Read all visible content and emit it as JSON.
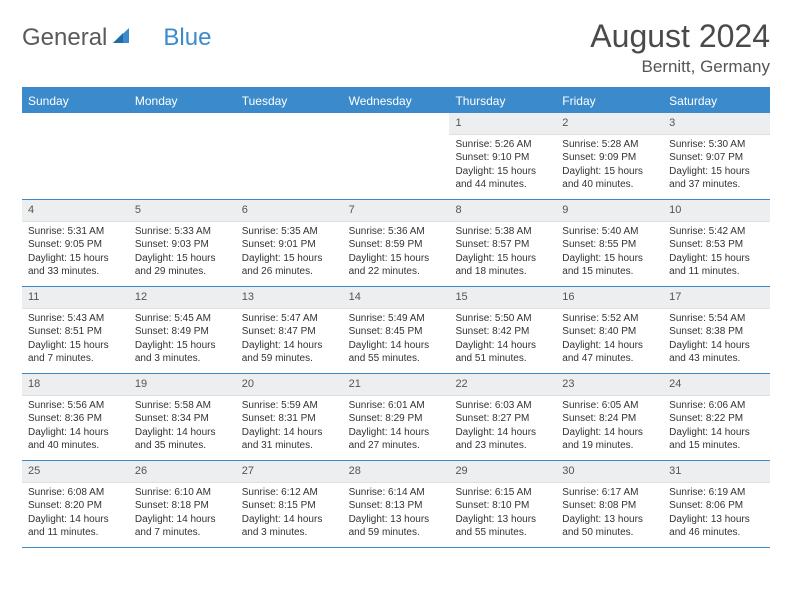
{
  "brand": {
    "part1": "General",
    "part2": "Blue"
  },
  "title": "August 2024",
  "subtitle": "Bernitt, Germany",
  "colors": {
    "header_bg": "#3b8bcc",
    "header_text": "#ffffff",
    "daynum_bg": "#eceeef",
    "body_text": "#333333",
    "rule": "#3b8bcc",
    "page_bg": "#ffffff"
  },
  "fontsizes": {
    "title": 32,
    "subtitle": 17,
    "dow": 12,
    "daynum": 11,
    "body": 10
  },
  "days_of_week": [
    "Sunday",
    "Monday",
    "Tuesday",
    "Wednesday",
    "Thursday",
    "Friday",
    "Saturday"
  ],
  "weeks": [
    [
      null,
      null,
      null,
      null,
      {
        "n": 1,
        "sunrise": "5:26 AM",
        "sunset": "9:10 PM",
        "dl_h": 15,
        "dl_m": 44
      },
      {
        "n": 2,
        "sunrise": "5:28 AM",
        "sunset": "9:09 PM",
        "dl_h": 15,
        "dl_m": 40
      },
      {
        "n": 3,
        "sunrise": "5:30 AM",
        "sunset": "9:07 PM",
        "dl_h": 15,
        "dl_m": 37
      }
    ],
    [
      {
        "n": 4,
        "sunrise": "5:31 AM",
        "sunset": "9:05 PM",
        "dl_h": 15,
        "dl_m": 33
      },
      {
        "n": 5,
        "sunrise": "5:33 AM",
        "sunset": "9:03 PM",
        "dl_h": 15,
        "dl_m": 29
      },
      {
        "n": 6,
        "sunrise": "5:35 AM",
        "sunset": "9:01 PM",
        "dl_h": 15,
        "dl_m": 26
      },
      {
        "n": 7,
        "sunrise": "5:36 AM",
        "sunset": "8:59 PM",
        "dl_h": 15,
        "dl_m": 22
      },
      {
        "n": 8,
        "sunrise": "5:38 AM",
        "sunset": "8:57 PM",
        "dl_h": 15,
        "dl_m": 18
      },
      {
        "n": 9,
        "sunrise": "5:40 AM",
        "sunset": "8:55 PM",
        "dl_h": 15,
        "dl_m": 15
      },
      {
        "n": 10,
        "sunrise": "5:42 AM",
        "sunset": "8:53 PM",
        "dl_h": 15,
        "dl_m": 11
      }
    ],
    [
      {
        "n": 11,
        "sunrise": "5:43 AM",
        "sunset": "8:51 PM",
        "dl_h": 15,
        "dl_m": 7
      },
      {
        "n": 12,
        "sunrise": "5:45 AM",
        "sunset": "8:49 PM",
        "dl_h": 15,
        "dl_m": 3
      },
      {
        "n": 13,
        "sunrise": "5:47 AM",
        "sunset": "8:47 PM",
        "dl_h": 14,
        "dl_m": 59
      },
      {
        "n": 14,
        "sunrise": "5:49 AM",
        "sunset": "8:45 PM",
        "dl_h": 14,
        "dl_m": 55
      },
      {
        "n": 15,
        "sunrise": "5:50 AM",
        "sunset": "8:42 PM",
        "dl_h": 14,
        "dl_m": 51
      },
      {
        "n": 16,
        "sunrise": "5:52 AM",
        "sunset": "8:40 PM",
        "dl_h": 14,
        "dl_m": 47
      },
      {
        "n": 17,
        "sunrise": "5:54 AM",
        "sunset": "8:38 PM",
        "dl_h": 14,
        "dl_m": 43
      }
    ],
    [
      {
        "n": 18,
        "sunrise": "5:56 AM",
        "sunset": "8:36 PM",
        "dl_h": 14,
        "dl_m": 40
      },
      {
        "n": 19,
        "sunrise": "5:58 AM",
        "sunset": "8:34 PM",
        "dl_h": 14,
        "dl_m": 35
      },
      {
        "n": 20,
        "sunrise": "5:59 AM",
        "sunset": "8:31 PM",
        "dl_h": 14,
        "dl_m": 31
      },
      {
        "n": 21,
        "sunrise": "6:01 AM",
        "sunset": "8:29 PM",
        "dl_h": 14,
        "dl_m": 27
      },
      {
        "n": 22,
        "sunrise": "6:03 AM",
        "sunset": "8:27 PM",
        "dl_h": 14,
        "dl_m": 23
      },
      {
        "n": 23,
        "sunrise": "6:05 AM",
        "sunset": "8:24 PM",
        "dl_h": 14,
        "dl_m": 19
      },
      {
        "n": 24,
        "sunrise": "6:06 AM",
        "sunset": "8:22 PM",
        "dl_h": 14,
        "dl_m": 15
      }
    ],
    [
      {
        "n": 25,
        "sunrise": "6:08 AM",
        "sunset": "8:20 PM",
        "dl_h": 14,
        "dl_m": 11
      },
      {
        "n": 26,
        "sunrise": "6:10 AM",
        "sunset": "8:18 PM",
        "dl_h": 14,
        "dl_m": 7
      },
      {
        "n": 27,
        "sunrise": "6:12 AM",
        "sunset": "8:15 PM",
        "dl_h": 14,
        "dl_m": 3
      },
      {
        "n": 28,
        "sunrise": "6:14 AM",
        "sunset": "8:13 PM",
        "dl_h": 13,
        "dl_m": 59
      },
      {
        "n": 29,
        "sunrise": "6:15 AM",
        "sunset": "8:10 PM",
        "dl_h": 13,
        "dl_m": 55
      },
      {
        "n": 30,
        "sunrise": "6:17 AM",
        "sunset": "8:08 PM",
        "dl_h": 13,
        "dl_m": 50
      },
      {
        "n": 31,
        "sunrise": "6:19 AM",
        "sunset": "8:06 PM",
        "dl_h": 13,
        "dl_m": 46
      }
    ]
  ],
  "labels": {
    "sunrise_prefix": "Sunrise: ",
    "sunset_prefix": "Sunset: ",
    "daylight_prefix": "Daylight: ",
    "hours_word": " hours",
    "and_word": "and ",
    "minutes_word": " minutes."
  }
}
